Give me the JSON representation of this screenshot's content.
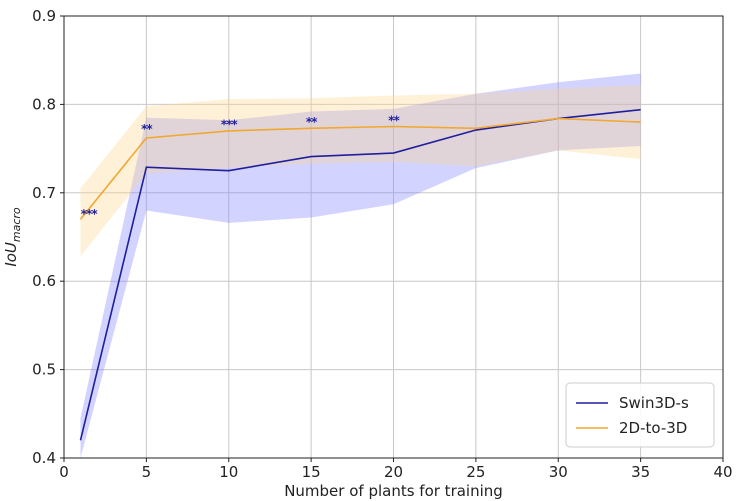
{
  "chart_data": {
    "type": "line",
    "title": "",
    "xlabel": "Number of plants for training",
    "ylabel_main": "IoU",
    "ylabel_sub": "macro",
    "xlim": [
      0,
      40
    ],
    "ylim": [
      0.4,
      0.9
    ],
    "xticks": [
      0,
      5,
      10,
      15,
      20,
      25,
      30,
      35,
      40
    ],
    "yticks": [
      0.4,
      0.5,
      0.6,
      0.7,
      0.8,
      0.9
    ],
    "grid": true,
    "legend_position": "bottom-right",
    "series": [
      {
        "name": "Swin3D-s",
        "color": "#1f1f9e",
        "band_color": "#8080ff",
        "x": [
          1,
          5,
          10,
          15,
          20,
          25,
          30,
          35
        ],
        "y": [
          0.42,
          0.729,
          0.725,
          0.741,
          0.745,
          0.771,
          0.784,
          0.794
        ],
        "lower": [
          0.4,
          0.68,
          0.666,
          0.672,
          0.687,
          0.728,
          0.748,
          0.753
        ],
        "upper": [
          0.445,
          0.785,
          0.782,
          0.792,
          0.795,
          0.812,
          0.825,
          0.835
        ]
      },
      {
        "name": "2D-to-3D",
        "color": "#f0a830",
        "band_color": "#fcd690",
        "x": [
          1,
          5,
          10,
          15,
          20,
          25,
          30,
          35
        ],
        "y": [
          0.67,
          0.762,
          0.77,
          0.773,
          0.775,
          0.773,
          0.784,
          0.78
        ],
        "lower": [
          0.628,
          0.722,
          0.728,
          0.733,
          0.735,
          0.73,
          0.748,
          0.738
        ],
        "upper": [
          0.705,
          0.798,
          0.806,
          0.807,
          0.81,
          0.812,
          0.818,
          0.822
        ]
      }
    ],
    "annotations": [
      {
        "x": 1.5,
        "y": 0.676,
        "text": "***"
      },
      {
        "x": 5,
        "y": 0.772,
        "text": "**"
      },
      {
        "x": 10,
        "y": 0.777,
        "text": "***"
      },
      {
        "x": 15,
        "y": 0.78,
        "text": "**"
      },
      {
        "x": 20,
        "y": 0.782,
        "text": "**"
      }
    ]
  }
}
